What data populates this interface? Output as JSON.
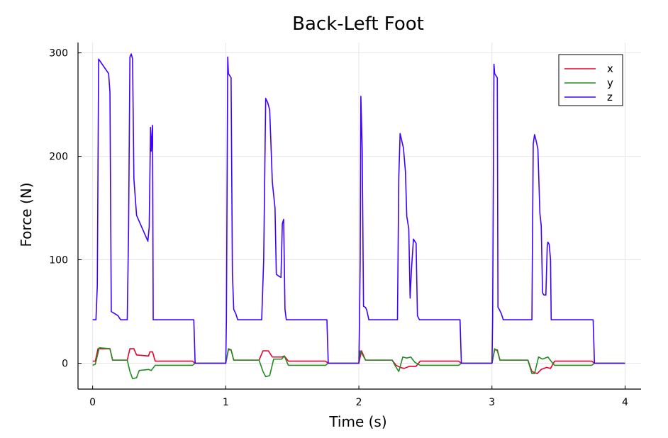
{
  "chart_data": {
    "type": "line",
    "title": "Back-Left Foot",
    "xlabel": "Time (s)",
    "ylabel": "Force (N)",
    "xlim": [
      -0.11,
      4.12
    ],
    "ylim": [
      -25,
      310
    ],
    "xticks": [
      0,
      1,
      2,
      3,
      4
    ],
    "yticks": [
      0,
      100,
      200,
      300
    ],
    "grid": true,
    "legend_position": "top-right",
    "series": [
      {
        "name": "x",
        "color": "#e8002d",
        "points": [
          [
            0,
            2
          ],
          [
            0.02,
            2
          ],
          [
            0.04,
            14
          ],
          [
            0.13,
            14
          ],
          [
            0.15,
            3
          ],
          [
            0.26,
            3
          ],
          [
            0.28,
            14
          ],
          [
            0.31,
            14
          ],
          [
            0.33,
            8
          ],
          [
            0.42,
            7
          ],
          [
            0.43,
            11
          ],
          [
            0.45,
            11
          ],
          [
            0.47,
            2
          ],
          [
            0.75,
            2
          ],
          [
            0.77,
            0
          ],
          [
            1.0,
            0
          ],
          [
            1.02,
            13
          ],
          [
            1.04,
            13
          ],
          [
            1.06,
            3
          ],
          [
            1.25,
            3
          ],
          [
            1.28,
            12
          ],
          [
            1.32,
            12
          ],
          [
            1.35,
            6
          ],
          [
            1.42,
            6
          ],
          [
            1.44,
            7
          ],
          [
            1.47,
            2
          ],
          [
            1.75,
            2
          ],
          [
            1.77,
            0
          ],
          [
            2.0,
            0
          ],
          [
            2.02,
            12
          ],
          [
            2.05,
            3
          ],
          [
            2.25,
            3
          ],
          [
            2.28,
            -2
          ],
          [
            2.31,
            -4
          ],
          [
            2.34,
            -5
          ],
          [
            2.38,
            -3
          ],
          [
            2.43,
            -3
          ],
          [
            2.46,
            2
          ],
          [
            2.75,
            2
          ],
          [
            2.77,
            0
          ],
          [
            3.0,
            0
          ],
          [
            3.02,
            13
          ],
          [
            3.04,
            13
          ],
          [
            3.06,
            3
          ],
          [
            3.27,
            3
          ],
          [
            3.3,
            -8
          ],
          [
            3.34,
            -10
          ],
          [
            3.37,
            -6
          ],
          [
            3.41,
            -4
          ],
          [
            3.44,
            -5
          ],
          [
            3.47,
            2
          ],
          [
            3.75,
            2
          ],
          [
            3.77,
            0
          ],
          [
            4.0,
            0
          ]
        ]
      },
      {
        "name": "y",
        "color": "#228b22",
        "points": [
          [
            0,
            -2
          ],
          [
            0.02,
            -1
          ],
          [
            0.05,
            15
          ],
          [
            0.13,
            14
          ],
          [
            0.15,
            3
          ],
          [
            0.26,
            3
          ],
          [
            0.28,
            -8
          ],
          [
            0.3,
            -15
          ],
          [
            0.33,
            -14
          ],
          [
            0.35,
            -7
          ],
          [
            0.42,
            -6
          ],
          [
            0.44,
            -7
          ],
          [
            0.47,
            -2
          ],
          [
            0.75,
            -2
          ],
          [
            0.77,
            0
          ],
          [
            1.0,
            0
          ],
          [
            1.02,
            14
          ],
          [
            1.04,
            13
          ],
          [
            1.06,
            3
          ],
          [
            1.25,
            3
          ],
          [
            1.28,
            -8
          ],
          [
            1.3,
            -13
          ],
          [
            1.33,
            -12
          ],
          [
            1.36,
            4
          ],
          [
            1.42,
            4
          ],
          [
            1.44,
            7
          ],
          [
            1.47,
            -2
          ],
          [
            1.75,
            -2
          ],
          [
            1.77,
            0
          ],
          [
            2.0,
            0
          ],
          [
            2.01,
            12
          ],
          [
            2.02,
            10
          ],
          [
            2.05,
            3
          ],
          [
            2.25,
            3
          ],
          [
            2.28,
            -4
          ],
          [
            2.3,
            -8
          ],
          [
            2.33,
            6
          ],
          [
            2.36,
            5
          ],
          [
            2.39,
            6
          ],
          [
            2.42,
            1
          ],
          [
            2.46,
            -2
          ],
          [
            2.75,
            -2
          ],
          [
            2.77,
            0
          ],
          [
            3.0,
            0
          ],
          [
            3.02,
            14
          ],
          [
            3.04,
            12
          ],
          [
            3.06,
            3
          ],
          [
            3.27,
            3
          ],
          [
            3.3,
            -10
          ],
          [
            3.32,
            -10
          ],
          [
            3.35,
            6
          ],
          [
            3.38,
            4
          ],
          [
            3.42,
            6
          ],
          [
            3.45,
            1
          ],
          [
            3.47,
            -2
          ],
          [
            3.75,
            -2
          ],
          [
            3.77,
            0
          ],
          [
            4.0,
            0
          ]
        ]
      },
      {
        "name": "z",
        "color": "#3f00ff",
        "points": [
          [
            0,
            42
          ],
          [
            0.025,
            42
          ],
          [
            0.035,
            75
          ],
          [
            0.045,
            294
          ],
          [
            0.12,
            280
          ],
          [
            0.13,
            262
          ],
          [
            0.14,
            50
          ],
          [
            0.19,
            46
          ],
          [
            0.21,
            42
          ],
          [
            0.26,
            42
          ],
          [
            0.27,
            130
          ],
          [
            0.28,
            296
          ],
          [
            0.29,
            299
          ],
          [
            0.3,
            294
          ],
          [
            0.31,
            178
          ],
          [
            0.33,
            143
          ],
          [
            0.415,
            118
          ],
          [
            0.425,
            132
          ],
          [
            0.435,
            228
          ],
          [
            0.44,
            205
          ],
          [
            0.45,
            230
          ],
          [
            0.455,
            42
          ],
          [
            0.76,
            42
          ],
          [
            0.77,
            0
          ],
          [
            1.0,
            0
          ],
          [
            1.005,
            42
          ],
          [
            1.015,
            296
          ],
          [
            1.02,
            280
          ],
          [
            1.04,
            276
          ],
          [
            1.05,
            87
          ],
          [
            1.06,
            52
          ],
          [
            1.075,
            48
          ],
          [
            1.09,
            42
          ],
          [
            1.27,
            42
          ],
          [
            1.285,
            100
          ],
          [
            1.3,
            256
          ],
          [
            1.315,
            252
          ],
          [
            1.33,
            245
          ],
          [
            1.35,
            175
          ],
          [
            1.37,
            150
          ],
          [
            1.38,
            86
          ],
          [
            1.4,
            84
          ],
          [
            1.415,
            83
          ],
          [
            1.425,
            135
          ],
          [
            1.435,
            139
          ],
          [
            1.445,
            52
          ],
          [
            1.455,
            42
          ],
          [
            1.76,
            42
          ],
          [
            1.77,
            0
          ],
          [
            2.0,
            0
          ],
          [
            2.005,
            42
          ],
          [
            2.01,
            100
          ],
          [
            2.015,
            258
          ],
          [
            2.025,
            207
          ],
          [
            2.035,
            55
          ],
          [
            2.05,
            54
          ],
          [
            2.06,
            51
          ],
          [
            2.075,
            42
          ],
          [
            2.29,
            42
          ],
          [
            2.3,
            180
          ],
          [
            2.31,
            222
          ],
          [
            2.335,
            208
          ],
          [
            2.35,
            185
          ],
          [
            2.36,
            142
          ],
          [
            2.375,
            130
          ],
          [
            2.385,
            63
          ],
          [
            2.395,
            90
          ],
          [
            2.41,
            120
          ],
          [
            2.42,
            118
          ],
          [
            2.43,
            116
          ],
          [
            2.44,
            46
          ],
          [
            2.455,
            42
          ],
          [
            2.76,
            42
          ],
          [
            2.77,
            0
          ],
          [
            3.0,
            0
          ],
          [
            3.005,
            42
          ],
          [
            3.015,
            289
          ],
          [
            3.02,
            280
          ],
          [
            3.04,
            276
          ],
          [
            3.045,
            54
          ],
          [
            3.055,
            52
          ],
          [
            3.07,
            48
          ],
          [
            3.085,
            42
          ],
          [
            3.3,
            42
          ],
          [
            3.31,
            212
          ],
          [
            3.32,
            221
          ],
          [
            3.33,
            216
          ],
          [
            3.345,
            207
          ],
          [
            3.36,
            145
          ],
          [
            3.37,
            133
          ],
          [
            3.38,
            68
          ],
          [
            3.39,
            66
          ],
          [
            3.405,
            66
          ],
          [
            3.415,
            112
          ],
          [
            3.42,
            117
          ],
          [
            3.43,
            115
          ],
          [
            3.44,
            100
          ],
          [
            3.445,
            42
          ],
          [
            3.76,
            42
          ],
          [
            3.77,
            0
          ],
          [
            4.0,
            0
          ]
        ]
      }
    ]
  }
}
